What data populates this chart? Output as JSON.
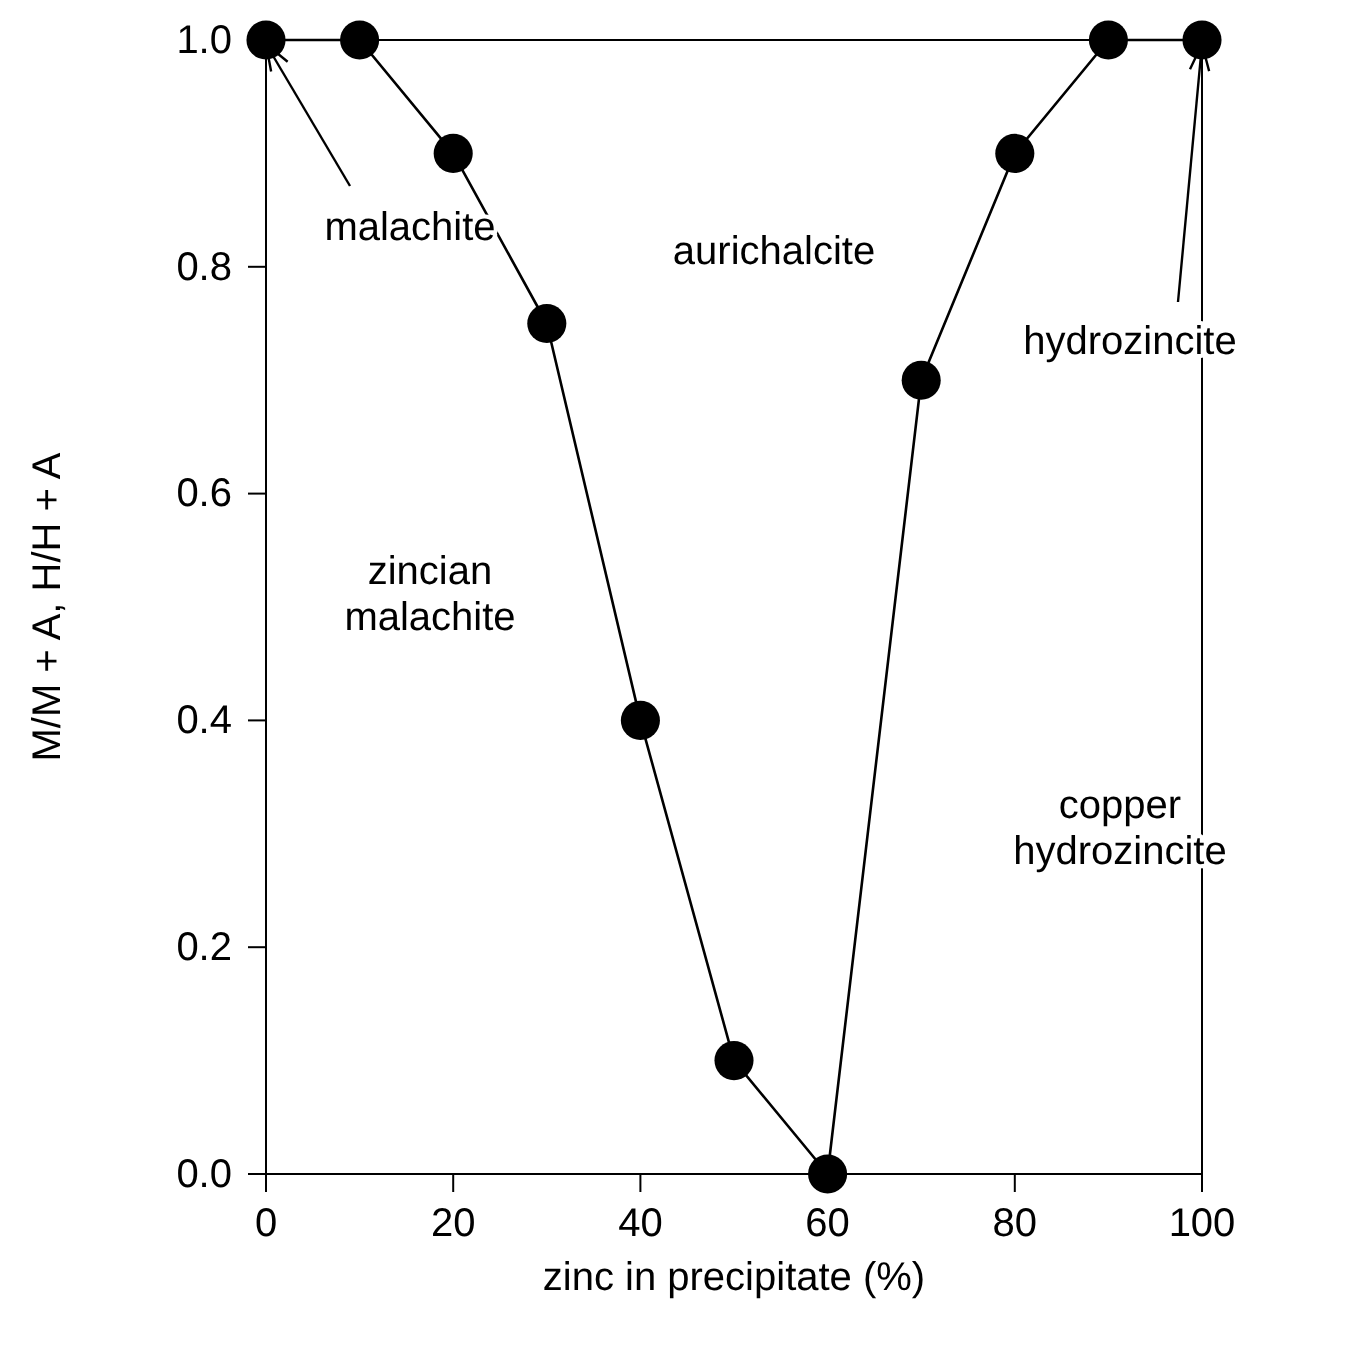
{
  "chart_data": {
    "type": "line",
    "xlabel": "zinc in precipitate (%)",
    "ylabel": "M/M + A, H/H + A",
    "x": [
      0,
      10,
      20,
      30,
      40,
      50,
      60,
      70,
      80,
      90,
      100
    ],
    "values": [
      1,
      1,
      0.9,
      0.75,
      0.4,
      0.1,
      0,
      0.7,
      0.9,
      1,
      1
    ],
    "color": "#000000",
    "marker": "circle",
    "line_style": "solid",
    "grid": false,
    "xlim": [
      0,
      100
    ],
    "xticks": [
      0,
      20,
      40,
      60,
      80,
      100
    ],
    "ylim": [
      0,
      1
    ],
    "yticks": [
      {
        "value": 0,
        "label": "0.0"
      },
      {
        "value": 0.2,
        "label": "0.2"
      },
      {
        "value": 0.4,
        "label": "0.4"
      },
      {
        "value": 0.6,
        "label": "0.6"
      },
      {
        "value": 0.8,
        "label": "0.8"
      },
      {
        "value": 1,
        "label": "1.0"
      }
    ],
    "annotations": [
      {
        "text": "malachite",
        "x": 0,
        "y": 1
      },
      "aurichalcite",
      {
        "text": "hydrozincite",
        "x": 100,
        "y": 1
      },
      "zincian malachite",
      "copper hydrozincite"
    ]
  }
}
